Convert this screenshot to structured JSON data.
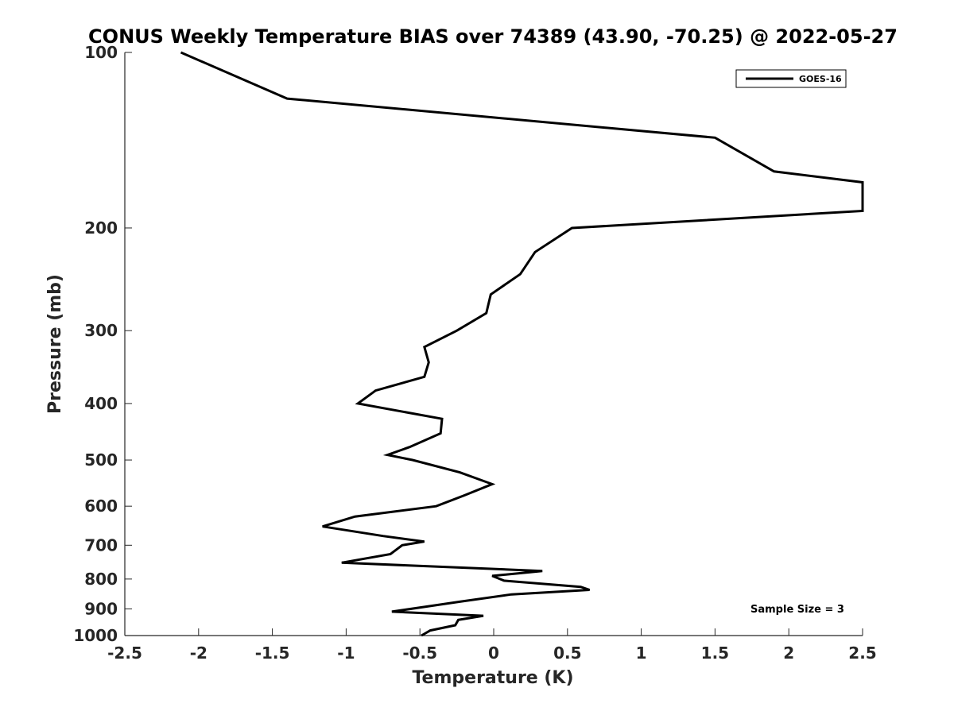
{
  "chart_data": {
    "type": "line",
    "title": "CONUS Weekly Temperature BIAS over 74389 (43.90, -70.25) @ 2022-05-27",
    "xlabel": "Temperature (K)",
    "ylabel": "Pressure (mb)",
    "xlim": [
      -2.5,
      2.5
    ],
    "ylim": [
      1000,
      100
    ],
    "y_scale": "log",
    "x_ticks": [
      -2.5,
      -2,
      -1.5,
      -1,
      -0.5,
      0,
      0.5,
      1,
      1.5,
      2,
      2.5
    ],
    "x_tick_labels": [
      "-2.5",
      "-2",
      "-1.5",
      "-1",
      "-0.5",
      "0",
      "0.5",
      "1",
      "1.5",
      "2",
      "2.5"
    ],
    "y_ticks": [
      100,
      200,
      300,
      400,
      500,
      600,
      700,
      800,
      900,
      1000
    ],
    "y_tick_labels": [
      "100",
      "200",
      "300",
      "400",
      "500",
      "600",
      "700",
      "800",
      "900",
      "1000"
    ],
    "grid": false,
    "legend_position": "top-right",
    "annotation": "Sample Size = 3",
    "series": [
      {
        "name": "GOES-16",
        "color": "#000000",
        "points": [
          {
            "x": -2.12,
            "p": 100
          },
          {
            "x": -1.4,
            "p": 120
          },
          {
            "x": 1.5,
            "p": 140
          },
          {
            "x": 1.9,
            "p": 160
          },
          {
            "x": 2.5,
            "p": 167
          },
          {
            "x": 2.5,
            "p": 187
          },
          {
            "x": 0.53,
            "p": 200
          },
          {
            "x": 0.28,
            "p": 220
          },
          {
            "x": 0.18,
            "p": 240
          },
          {
            "x": -0.02,
            "p": 260
          },
          {
            "x": -0.05,
            "p": 280
          },
          {
            "x": -0.25,
            "p": 300
          },
          {
            "x": -0.47,
            "p": 320
          },
          {
            "x": -0.44,
            "p": 340
          },
          {
            "x": -0.47,
            "p": 360
          },
          {
            "x": -0.8,
            "p": 380
          },
          {
            "x": -0.92,
            "p": 400
          },
          {
            "x": -0.35,
            "p": 425
          },
          {
            "x": -0.36,
            "p": 450
          },
          {
            "x": -0.57,
            "p": 475
          },
          {
            "x": -0.72,
            "p": 490
          },
          {
            "x": -0.55,
            "p": 500
          },
          {
            "x": -0.23,
            "p": 525
          },
          {
            "x": -0.01,
            "p": 550
          },
          {
            "x": -0.2,
            "p": 575
          },
          {
            "x": -0.39,
            "p": 600
          },
          {
            "x": -0.94,
            "p": 625
          },
          {
            "x": -1.16,
            "p": 650
          },
          {
            "x": -0.75,
            "p": 675
          },
          {
            "x": -0.47,
            "p": 690
          },
          {
            "x": -0.62,
            "p": 700
          },
          {
            "x": -0.7,
            "p": 725
          },
          {
            "x": -1.03,
            "p": 750
          },
          {
            "x": 0.33,
            "p": 775
          },
          {
            "x": -0.01,
            "p": 790
          },
          {
            "x": 0.07,
            "p": 805
          },
          {
            "x": 0.59,
            "p": 825
          },
          {
            "x": 0.65,
            "p": 835
          },
          {
            "x": 0.12,
            "p": 850
          },
          {
            "x": -0.23,
            "p": 875
          },
          {
            "x": -0.69,
            "p": 910
          },
          {
            "x": -0.07,
            "p": 925
          },
          {
            "x": -0.24,
            "p": 940
          },
          {
            "x": -0.26,
            "p": 960
          },
          {
            "x": -0.43,
            "p": 980
          },
          {
            "x": -0.49,
            "p": 1000
          }
        ]
      }
    ]
  }
}
